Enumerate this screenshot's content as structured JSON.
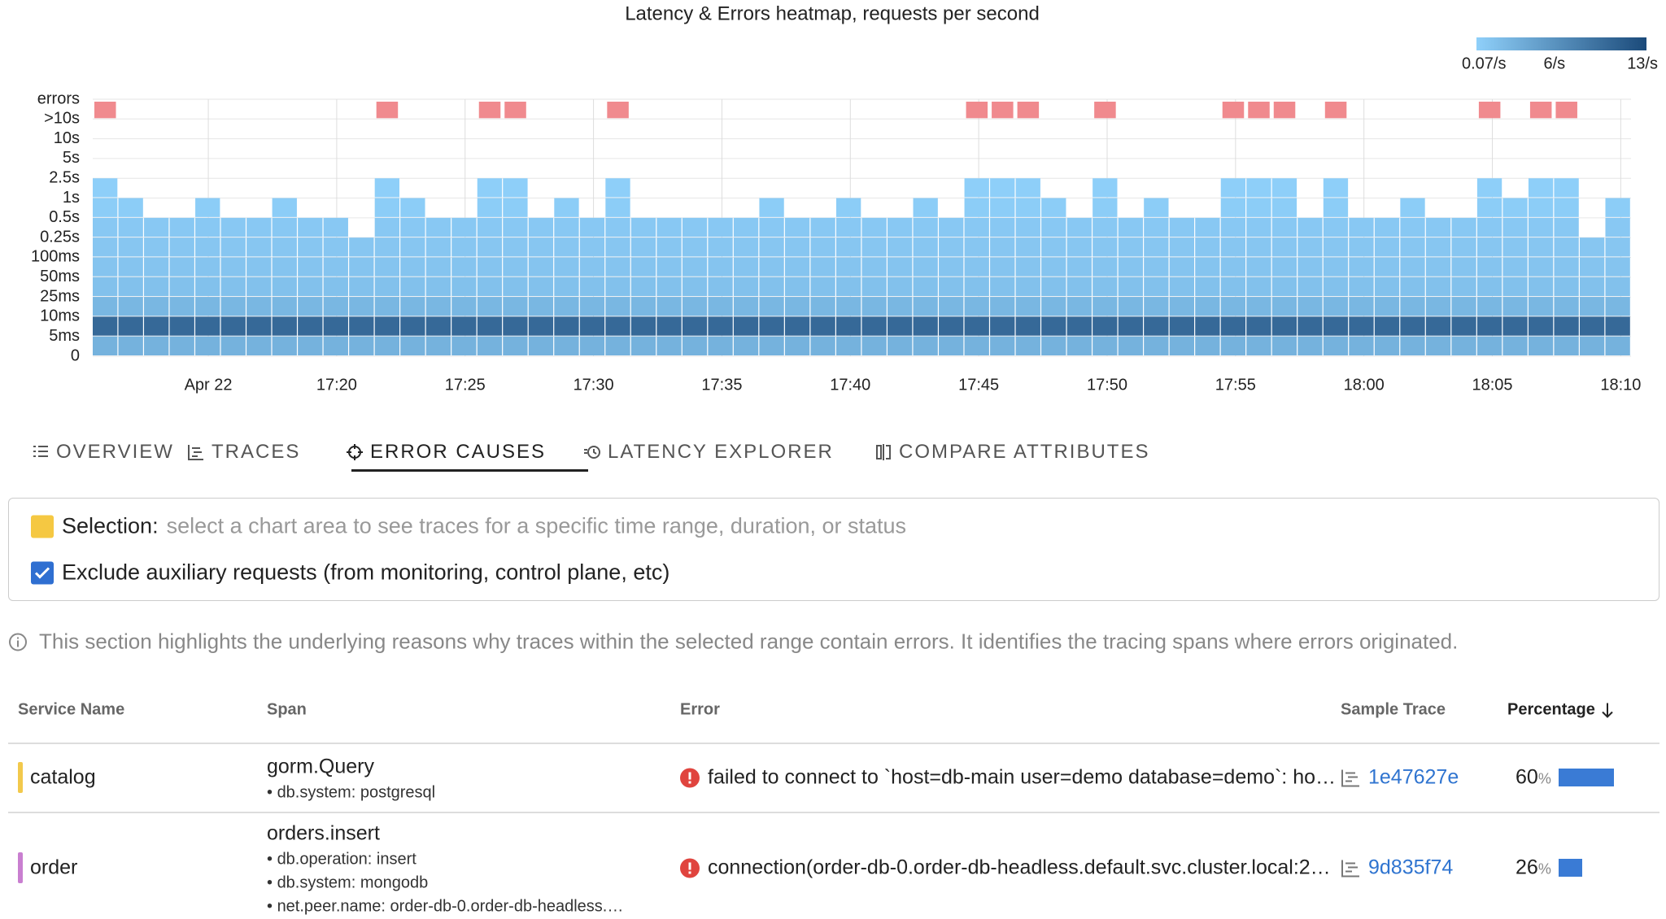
{
  "chart_data": {
    "type": "heatmap",
    "title": "Latency & Errors heatmap, requests per second",
    "y_labels": [
      "errors",
      ">10s",
      "10s",
      "5s",
      "2.5s",
      "1s",
      "0.5s",
      "0.25s",
      "100ms",
      "50ms",
      "25ms",
      "10ms",
      "5ms",
      "0"
    ],
    "xlim": [
      -4.5,
      55.4
    ],
    "xticks": [
      {
        "value": 0,
        "label": "Apr 22"
      },
      {
        "value": 5,
        "label": "17:20"
      },
      {
        "value": 10,
        "label": "17:25"
      },
      {
        "value": 15,
        "label": "17:30"
      },
      {
        "value": 20,
        "label": "17:35"
      },
      {
        "value": 25,
        "label": "17:40"
      },
      {
        "value": 30,
        "label": "17:45"
      },
      {
        "value": 35,
        "label": "17:50"
      },
      {
        "value": 40,
        "label": "17:55"
      },
      {
        "value": 45,
        "label": "18:00"
      },
      {
        "value": 50,
        "label": "18:05"
      },
      {
        "value": 55,
        "label": "18:10"
      }
    ],
    "bucket_rates": [
      3,
      10,
      2.5,
      1.5,
      1.2,
      1,
      0.8,
      0.4,
      0.2,
      0.1,
      0.07,
      0.07
    ],
    "column_top": [
      8,
      7,
      6,
      6,
      7,
      6,
      6,
      7,
      6,
      6,
      5,
      8,
      7,
      6,
      6,
      8,
      8,
      6,
      7,
      6,
      8,
      6,
      6,
      6,
      6,
      6,
      7,
      6,
      6,
      7,
      6,
      6,
      7,
      6,
      8,
      8,
      8,
      7,
      6,
      8,
      6,
      7,
      6,
      6,
      8,
      8,
      8,
      6,
      8,
      6,
      6,
      7,
      6,
      6,
      8,
      7,
      8,
      8,
      5,
      7
    ],
    "errors": [
      0.5,
      0,
      0,
      0,
      0,
      0,
      0,
      0,
      0,
      0,
      0,
      0.5,
      0,
      0,
      0,
      0.5,
      0.5,
      0,
      0,
      0,
      0.5,
      0,
      0,
      0,
      0,
      0,
      0,
      0,
      0,
      0,
      0,
      0,
      0,
      0,
      0.5,
      0.5,
      0.5,
      0,
      0,
      0.5,
      0,
      0,
      0,
      0,
      0.5,
      0.5,
      0.5,
      0,
      0.5,
      0,
      0,
      0,
      0,
      0,
      0.5,
      0,
      0.5,
      0.5,
      0,
      0
    ],
    "error_color": "#f08a8e",
    "colorbar": {
      "range": [
        0.07,
        13
      ],
      "colors": [
        "#8fd0fa",
        "#1b4a7a"
      ],
      "ticks": [
        {
          "value": 0.07,
          "label": "0.07/s"
        },
        {
          "value": 6,
          "label": "6/s"
        },
        {
          "value": 13,
          "label": "13/s"
        }
      ]
    }
  },
  "tabs": [
    "OVERVIEW",
    "TRACES",
    "ERROR CAUSES",
    "LATENCY EXPLORER",
    "COMPARE ATTRIBUTES"
  ],
  "active_tab": 2,
  "selection": {
    "label": "Selection:",
    "hint": "select a chart area to see traces for a specific time range, duration, or status",
    "exclude_label": "Exclude auxiliary requests (from monitoring, control plane, etc)",
    "exclude_checked": true
  },
  "info": "This section highlights the underlying reasons why traces within the selected range contain errors. It identifies the tracing spans where errors originated.",
  "table": {
    "columns": [
      "Service Name",
      "Span",
      "Error",
      "Sample Trace",
      "Percentage"
    ],
    "unit": "%",
    "bar_color": "#3a7bd5",
    "rows": [
      {
        "service": "catalog",
        "color": "#f2c94c",
        "span": "gorm.Query",
        "attributes": [
          "db.system: postgresql"
        ],
        "error": "failed to connect to `host=db-main user=demo database=demo`: ho…",
        "trace": "1e47627e",
        "percentage": 60
      },
      {
        "service": "order",
        "color": "#c97fd0",
        "span": "orders.insert",
        "attributes": [
          "db.operation: insert",
          "db.system: mongodb",
          "net.peer.name: order-db-0.order-db-headless.…"
        ],
        "error": "connection(order-db-0.order-db-headless.default.svc.cluster.local:2…",
        "trace": "9d835f74",
        "percentage": 26
      }
    ]
  }
}
